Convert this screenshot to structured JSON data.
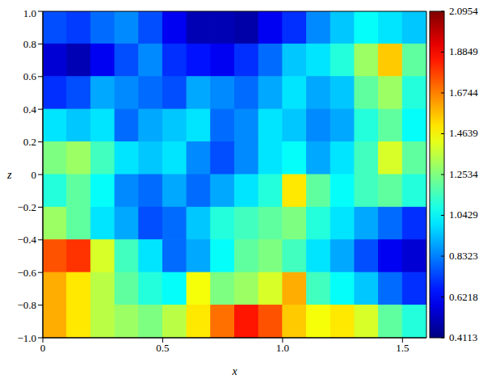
{
  "chart_data": {
    "type": "heatmap",
    "x_label": "x",
    "y_label": "z",
    "xlim": [
      0,
      1.6
    ],
    "ylim": [
      -1,
      1
    ],
    "xticks": [
      0,
      0.5,
      {
        "value": 1,
        "label": "1.0"
      },
      1.5
    ],
    "yticks": [
      {
        "value": -1,
        "label": "−1.0"
      },
      {
        "value": -0.8,
        "label": "−0.8"
      },
      {
        "value": -0.6,
        "label": "−0.6"
      },
      {
        "value": -0.4,
        "label": "−0.4"
      },
      {
        "value": -0.2,
        "label": "−0.2"
      },
      0,
      0.2,
      0.4,
      0.6,
      0.8,
      {
        "value": 1,
        "label": "1.0"
      }
    ],
    "cells": [
      [
        0.75,
        0.72,
        0.8,
        0.85,
        0.75,
        0.6,
        0.5,
        0.5,
        0.48,
        0.6,
        0.7,
        0.85,
        0.95,
        1.05,
        1.0,
        0.95
      ],
      [
        0.55,
        0.5,
        0.6,
        0.75,
        0.85,
        0.7,
        0.65,
        0.6,
        0.7,
        0.8,
        0.95,
        1.0,
        1.1,
        1.3,
        1.55,
        1.2
      ],
      [
        0.7,
        0.75,
        0.9,
        0.85,
        0.8,
        0.75,
        0.9,
        0.85,
        0.8,
        0.9,
        1.0,
        0.9,
        0.95,
        1.2,
        1.3,
        1.1
      ],
      [
        1.0,
        0.95,
        1.0,
        0.8,
        0.9,
        0.95,
        1.0,
        0.8,
        0.85,
        1.0,
        0.95,
        0.85,
        0.9,
        1.1,
        1.2,
        1.05
      ],
      [
        1.25,
        1.3,
        1.15,
        1.0,
        0.95,
        1.0,
        0.85,
        0.75,
        0.85,
        1.0,
        1.05,
        0.9,
        1.0,
        1.15,
        1.4,
        1.2
      ],
      [
        1.1,
        1.2,
        1.05,
        0.85,
        0.8,
        0.9,
        0.8,
        0.9,
        1.0,
        1.1,
        1.5,
        1.2,
        1.05,
        1.15,
        1.2,
        1.1
      ],
      [
        1.3,
        1.2,
        1.0,
        0.9,
        0.75,
        0.8,
        0.95,
        1.1,
        1.15,
        1.2,
        1.25,
        1.1,
        1.0,
        0.9,
        0.8,
        0.7
      ],
      [
        1.75,
        1.8,
        1.4,
        1.15,
        1.0,
        0.8,
        0.9,
        1.05,
        1.2,
        1.25,
        1.15,
        1.0,
        0.9,
        0.75,
        0.6,
        0.55
      ],
      [
        1.6,
        1.5,
        1.35,
        1.2,
        1.1,
        1.05,
        1.45,
        1.25,
        1.3,
        1.4,
        1.6,
        1.15,
        1.05,
        0.95,
        0.8,
        0.7
      ],
      [
        1.6,
        1.5,
        1.35,
        1.3,
        1.25,
        1.35,
        1.5,
        1.7,
        1.85,
        1.75,
        1.55,
        1.45,
        1.5,
        1.4,
        1.2,
        1.1
      ]
    ],
    "colorbar_range": [
      0.4113,
      2.0954
    ],
    "colorbar_ticks": [
      0.4113,
      0.6218,
      0.8323,
      1.0429,
      1.2534,
      1.4639,
      1.6744,
      1.8849,
      2.0954
    ]
  }
}
